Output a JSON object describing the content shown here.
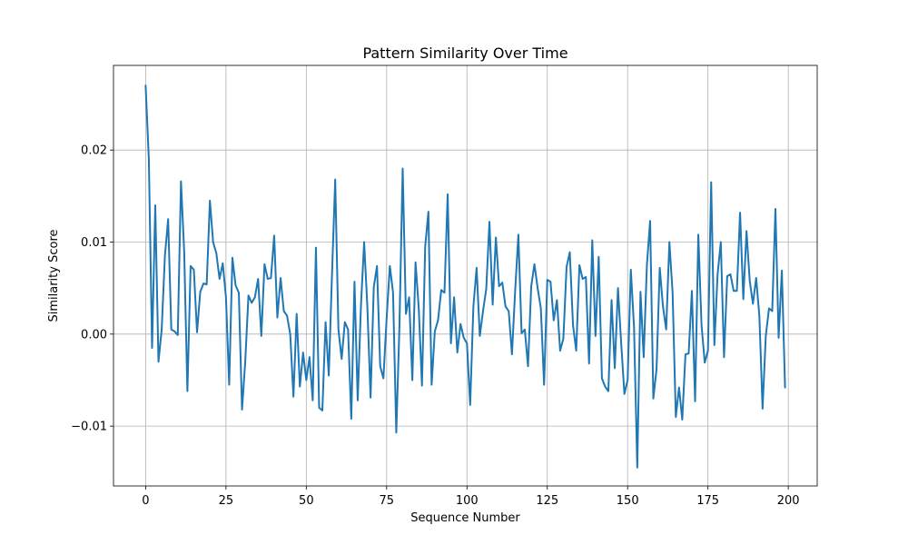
{
  "chart_data": {
    "type": "line",
    "title": "Pattern Similarity Over Time",
    "xlabel": "Sequence Number",
    "ylabel": "Similarity Score",
    "xlim": [
      -10,
      209
    ],
    "ylim": [
      -0.0165,
      0.0292
    ],
    "xticks": [
      0,
      25,
      50,
      75,
      100,
      125,
      150,
      175,
      200
    ],
    "xtick_labels": [
      "0",
      "25",
      "50",
      "75",
      "100",
      "125",
      "150",
      "175",
      "200"
    ],
    "yticks": [
      -0.01,
      0.0,
      0.01,
      0.02
    ],
    "ytick_labels": [
      "−0.01",
      "0.00",
      "0.01",
      "0.02"
    ],
    "grid": true,
    "series": [
      {
        "color": "#1f77b4",
        "x_start": 0,
        "x_step": 1,
        "values": [
          0.027,
          0.019,
          -0.0015,
          0.014,
          -0.003,
          0.0005,
          0.0085,
          0.0125,
          0.0005,
          0.0003,
          -0.0001,
          0.0166,
          0.009,
          -0.0062,
          0.0074,
          0.007,
          0.0002,
          0.0046,
          0.0055,
          0.0054,
          0.0145,
          0.01,
          0.0088,
          0.006,
          0.0077,
          0.004,
          -0.0055,
          0.0083,
          0.0053,
          0.0045,
          -0.0082,
          -0.003,
          0.0042,
          0.0034,
          0.004,
          0.006,
          -0.0002,
          0.0076,
          0.006,
          0.0061,
          0.0107,
          0.0018,
          0.0061,
          0.0025,
          0.002,
          0.0,
          -0.0068,
          0.0022,
          -0.0057,
          -0.002,
          -0.005,
          -0.0025,
          -0.0072,
          0.0094,
          -0.008,
          -0.0083,
          0.0013,
          -0.0045,
          0.0065,
          0.0168,
          0.0005,
          -0.0027,
          0.0013,
          0.0005,
          -0.0092,
          0.0057,
          -0.0072,
          0.003,
          0.01,
          0.003,
          -0.0069,
          0.0051,
          0.0074,
          -0.0035,
          -0.0048,
          0.0017,
          0.0074,
          0.0045,
          -0.0107,
          0.001,
          0.018,
          0.0022,
          0.004,
          -0.005,
          0.0078,
          0.0028,
          -0.0056,
          0.0095,
          0.0133,
          -0.0055,
          0.0003,
          0.0015,
          0.0048,
          0.0045,
          0.0152,
          -0.001,
          0.004,
          -0.002,
          0.0011,
          -0.0004,
          -0.001,
          -0.0077,
          0.003,
          0.0072,
          -0.0002,
          0.0025,
          0.0049,
          0.0122,
          0.0032,
          0.0105,
          0.0052,
          0.0056,
          0.003,
          0.0025,
          -0.0022,
          0.0047,
          0.0108,
          0.0001,
          0.0005,
          -0.0035,
          0.0052,
          0.0076,
          0.005,
          0.0028,
          -0.0055,
          0.0059,
          0.0057,
          0.0015,
          0.0037,
          -0.0018,
          -0.0005,
          0.0073,
          0.0089,
          0.001,
          -0.0018,
          0.0075,
          0.006,
          0.0062,
          -0.0032,
          0.0102,
          -0.0002,
          0.0084,
          -0.0048,
          -0.0057,
          -0.0062,
          0.0037,
          -0.0037,
          0.005,
          -0.001,
          -0.0065,
          -0.005,
          0.007,
          0.0007,
          -0.0145,
          0.0046,
          -0.0025,
          0.0075,
          0.0123,
          -0.007,
          -0.0038,
          0.0072,
          0.003,
          0.0005,
          0.01,
          0.0045,
          -0.009,
          -0.0058,
          -0.0093,
          -0.0022,
          -0.0021,
          0.0047,
          -0.0073,
          0.0108,
          0.001,
          -0.0031,
          -0.0018,
          0.0165,
          -0.0012,
          0.0065,
          0.01,
          -0.0025,
          0.0063,
          0.0065,
          0.0047,
          0.0047,
          0.0132,
          0.0038,
          0.0112,
          0.0058,
          0.0033,
          0.0061,
          0.002,
          -0.0081,
          -0.0002,
          0.0028,
          0.0025,
          0.0136,
          -0.0004,
          0.0069,
          -0.0058
        ]
      }
    ]
  }
}
